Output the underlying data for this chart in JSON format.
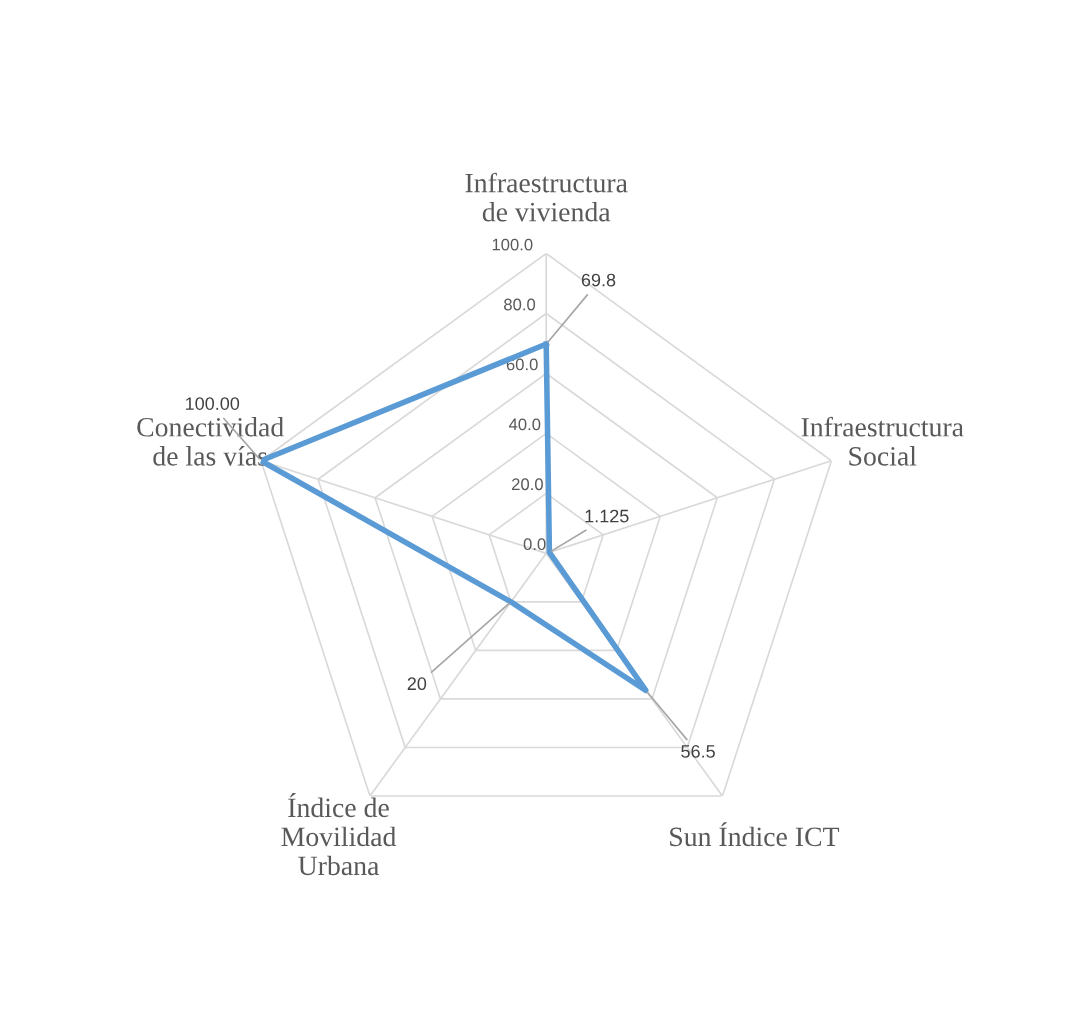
{
  "chart_data": {
    "type": "radar",
    "categories": [
      "Infraestructura\nde vivienda",
      "Infraestructura\nSocial",
      "Sun Índice ICT",
      "Índice de\nMovilidad\nUrbana",
      "Conectividad\nde las vías"
    ],
    "series": [
      {
        "color": "#5b9bd5",
        "values": [
          69.8,
          1.125,
          56.5,
          20,
          100.0
        ],
        "value_labels": [
          "69.8",
          "1.125",
          "56.5",
          "20",
          "100.00"
        ]
      }
    ],
    "ylim": [
      0,
      100
    ],
    "yticks": [
      {
        "value": 0,
        "label": "0.0"
      },
      {
        "value": 20,
        "label": "20.0"
      },
      {
        "value": 40,
        "label": "40.0"
      },
      {
        "value": 60,
        "label": "60.0"
      },
      {
        "value": 80,
        "label": "80.0"
      },
      {
        "value": 100,
        "label": "100.0"
      }
    ],
    "grid": true,
    "marker": "none",
    "line_style": "solid"
  }
}
